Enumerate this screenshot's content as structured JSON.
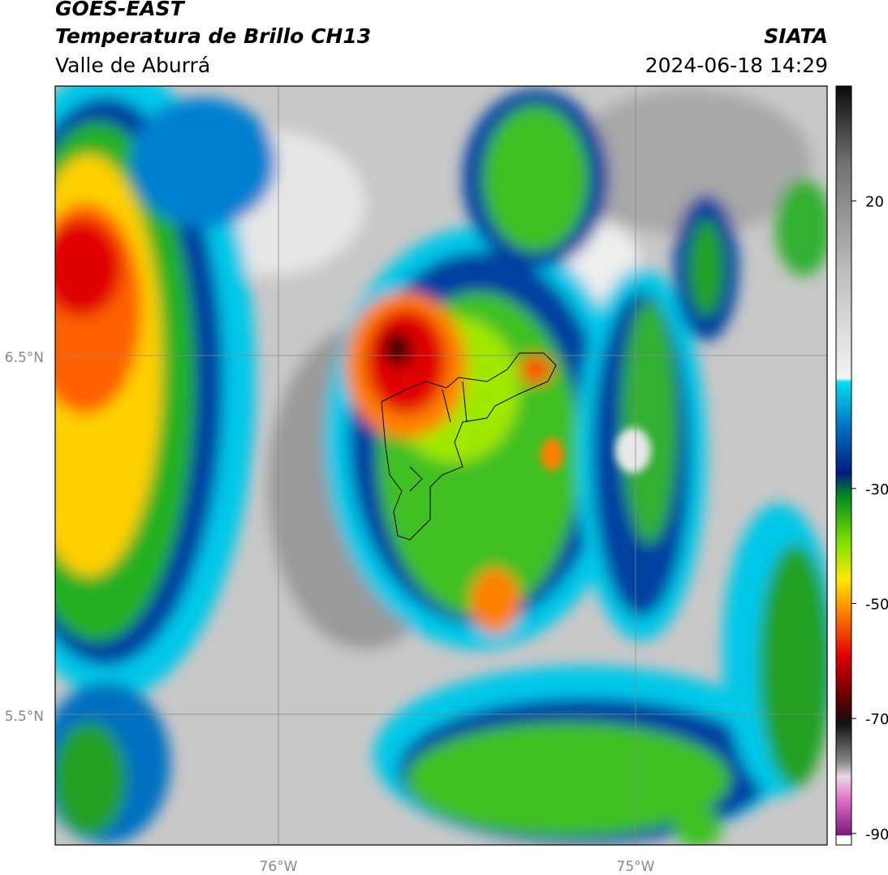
{
  "header": {
    "satellite": "GOES-EAST",
    "product": "Temperatura de Brillo CH13",
    "region": "Valle de Aburrá",
    "source": "SIATA",
    "datetime": "2024-06-18 14:29"
  },
  "map": {
    "lat_labels": [
      "6.5°N",
      "5.5°N"
    ],
    "lon_labels": [
      "76°W",
      "75°W"
    ]
  },
  "colorbar": {
    "range": [
      -92,
      40
    ],
    "ticks": [
      20,
      -30,
      -50,
      -70,
      -90
    ]
  }
}
